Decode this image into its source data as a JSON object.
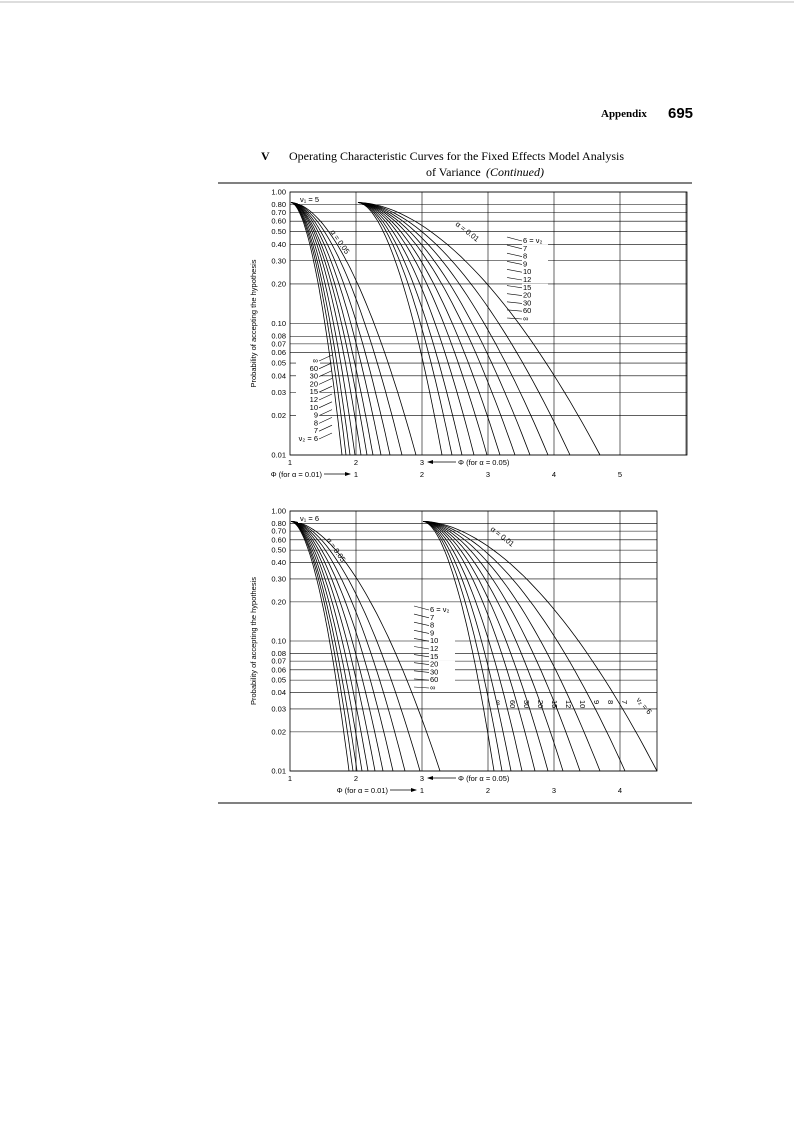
{
  "header": {
    "section": "Appendix",
    "page": "695"
  },
  "title": {
    "numeral": "V",
    "line1": "Operating Characteristic Curves for the Fixed Effects Model Analysis",
    "line2": "of Variance",
    "line2_italic": "(Continued)"
  },
  "figures": [
    {
      "nu1_label": "ν₁ = 5",
      "y_axis_label": "Probability of accepting the hypothesis",
      "y_ticks": [
        "1.00",
        "0.80",
        "0.70",
        "0.60",
        "0.50",
        "0.40",
        "0.30",
        "0.20",
        "0.10",
        "0.08",
        "0.07",
        "0.06",
        "0.05",
        "0.04",
        "0.03",
        "0.02",
        "0.01"
      ],
      "x_ticks_05": [
        "1",
        "2",
        "3"
      ],
      "x_label_05": "Φ (for α = 0.05)",
      "x_label_01": "Φ (for α = 0.01)",
      "x_ticks_01": [
        "1",
        "2",
        "3",
        "4",
        "5"
      ],
      "alpha_05": "α = 0.05",
      "alpha_01": "α = 0.01",
      "nu2_labels_a": [
        "6 = ν₂",
        "7",
        "8",
        "9",
        "10",
        "12",
        "15",
        "20",
        "30",
        "60",
        "∞"
      ],
      "nu2_labels_b": [
        "∞",
        "60",
        "30",
        "20",
        "15",
        "12",
        "10",
        "9",
        "8",
        "7",
        "ν₂ = 6"
      ]
    },
    {
      "nu1_label": "ν₁ = 6",
      "y_axis_label": "Probability of accepting the hypothesis",
      "y_ticks": [
        "1.00",
        "0.80",
        "0.70",
        "0.60",
        "0.50",
        "0.40",
        "0.30",
        "0.20",
        "0.10",
        "0.08",
        "0.07",
        "0.06",
        "0.05",
        "0.04",
        "0.03",
        "0.02",
        "0.01"
      ],
      "x_ticks_05": [
        "1",
        "2",
        "3"
      ],
      "x_label_05": "Φ (for α = 0.05)",
      "x_label_01": "Φ (for α = 0.01)",
      "x_ticks_01": [
        "1",
        "2",
        "3",
        "4"
      ],
      "alpha_05": "α = 0.05",
      "alpha_01": "α = 0.01",
      "nu2_labels_a": [
        "6 = ν₂",
        "7",
        "8",
        "9",
        "10",
        "12",
        "15",
        "20",
        "30",
        "60",
        "∞"
      ],
      "nu2_labels_b": [
        "∞",
        "60",
        "30",
        "20",
        "15",
        "12",
        "10",
        "9",
        "8",
        "7",
        "ν₂ = 6"
      ]
    }
  ]
}
